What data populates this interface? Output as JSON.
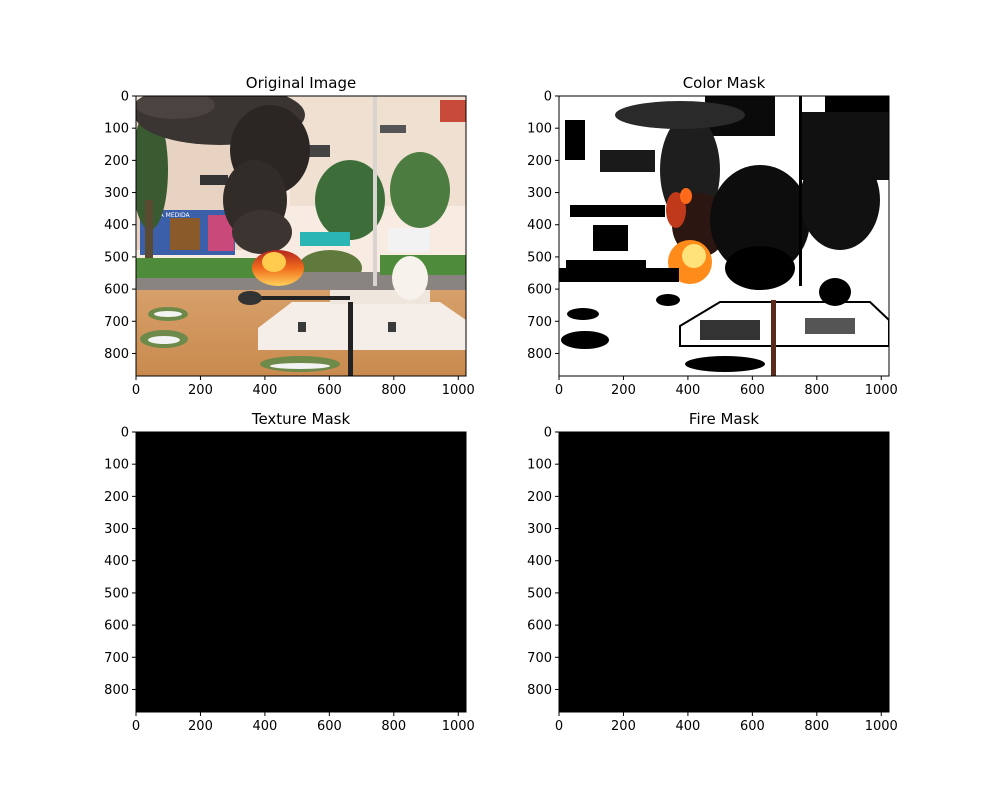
{
  "figure": {
    "background": "#ffffff"
  },
  "chart_data": [
    {
      "type": "image",
      "title": "Original Image",
      "content": "photo",
      "xlim": [
        0,
        1024
      ],
      "ylim": [
        870,
        0
      ],
      "xticks": [
        0,
        200,
        400,
        600,
        800,
        1000
      ],
      "yticks": [
        0,
        100,
        200,
        300,
        400,
        500,
        600,
        700,
        800
      ],
      "colors": {
        "sky": "#fdf3ec",
        "smoke": "#2e2a28",
        "fire": "#f06b1c",
        "grass": "#4e8b3a",
        "ground": "#d2955c",
        "monument": "#f4efe9"
      }
    },
    {
      "type": "image",
      "title": "Color Mask",
      "content": "binary-mask-with-fire-colors",
      "xlim": [
        0,
        1024
      ],
      "ylim": [
        870,
        0
      ],
      "xticks": [
        0,
        200,
        400,
        600,
        800,
        1000
      ],
      "yticks": [
        0,
        100,
        200,
        300,
        400,
        500,
        600,
        700,
        800
      ],
      "colors": {
        "fill": "#ffffff",
        "shadow": "#000000",
        "fire": "#ff8c1a",
        "ember": "#c0391b"
      }
    },
    {
      "type": "image",
      "title": "Texture Mask",
      "content": "empty",
      "fill": "#000000",
      "xlim": [
        0,
        1024
      ],
      "ylim": [
        870,
        0
      ],
      "xticks": [
        0,
        200,
        400,
        600,
        800,
        1000
      ],
      "yticks": [
        0,
        100,
        200,
        300,
        400,
        500,
        600,
        700,
        800
      ]
    },
    {
      "type": "image",
      "title": "Fire Mask",
      "content": "empty",
      "fill": "#000000",
      "xlim": [
        0,
        1024
      ],
      "ylim": [
        870,
        0
      ],
      "xticks": [
        0,
        200,
        400,
        600,
        800,
        1000
      ],
      "yticks": [
        0,
        100,
        200,
        300,
        400,
        500,
        600,
        700,
        800
      ]
    }
  ]
}
